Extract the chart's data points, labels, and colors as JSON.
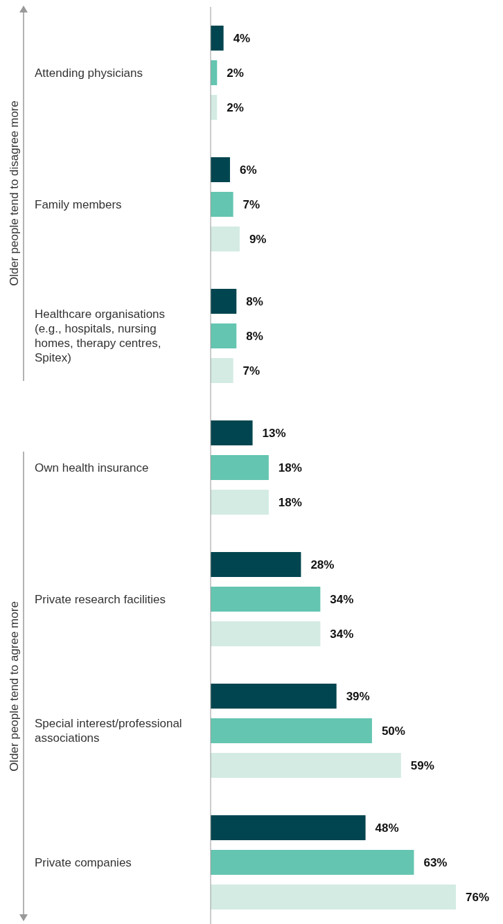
{
  "chart_data": {
    "type": "bar",
    "orientation": "horizontal",
    "categories": [
      "Attending physicians",
      "Family members",
      "Healthcare organisations (e.g., hospitals, nursing homes, therapy centres, Spitex)",
      "Own health insurance",
      "Private research facilities",
      "Special interest/professional associations",
      "Private companies"
    ],
    "series": [
      {
        "color": "#00454f",
        "values": [
          4,
          6,
          8,
          13,
          28,
          39,
          48
        ],
        "value_labels": [
          "4%",
          "6%",
          "8%",
          "13%",
          "28%",
          "39%",
          "48%"
        ]
      },
      {
        "color": "#64c5b1",
        "values": [
          2,
          7,
          8,
          18,
          34,
          50,
          63
        ],
        "value_labels": [
          "2%",
          "7%",
          "8%",
          "18%",
          "34%",
          "50%",
          "63%"
        ]
      },
      {
        "color": "#d3ebe3",
        "values": [
          2,
          9,
          7,
          18,
          34,
          59,
          76
        ],
        "value_labels": [
          "2%",
          "9%",
          "7%",
          "18%",
          "34%",
          "59%",
          "76%"
        ]
      }
    ],
    "annotations": [
      "Older people tend to disagree more",
      "Older people tend to agree more"
    ]
  }
}
